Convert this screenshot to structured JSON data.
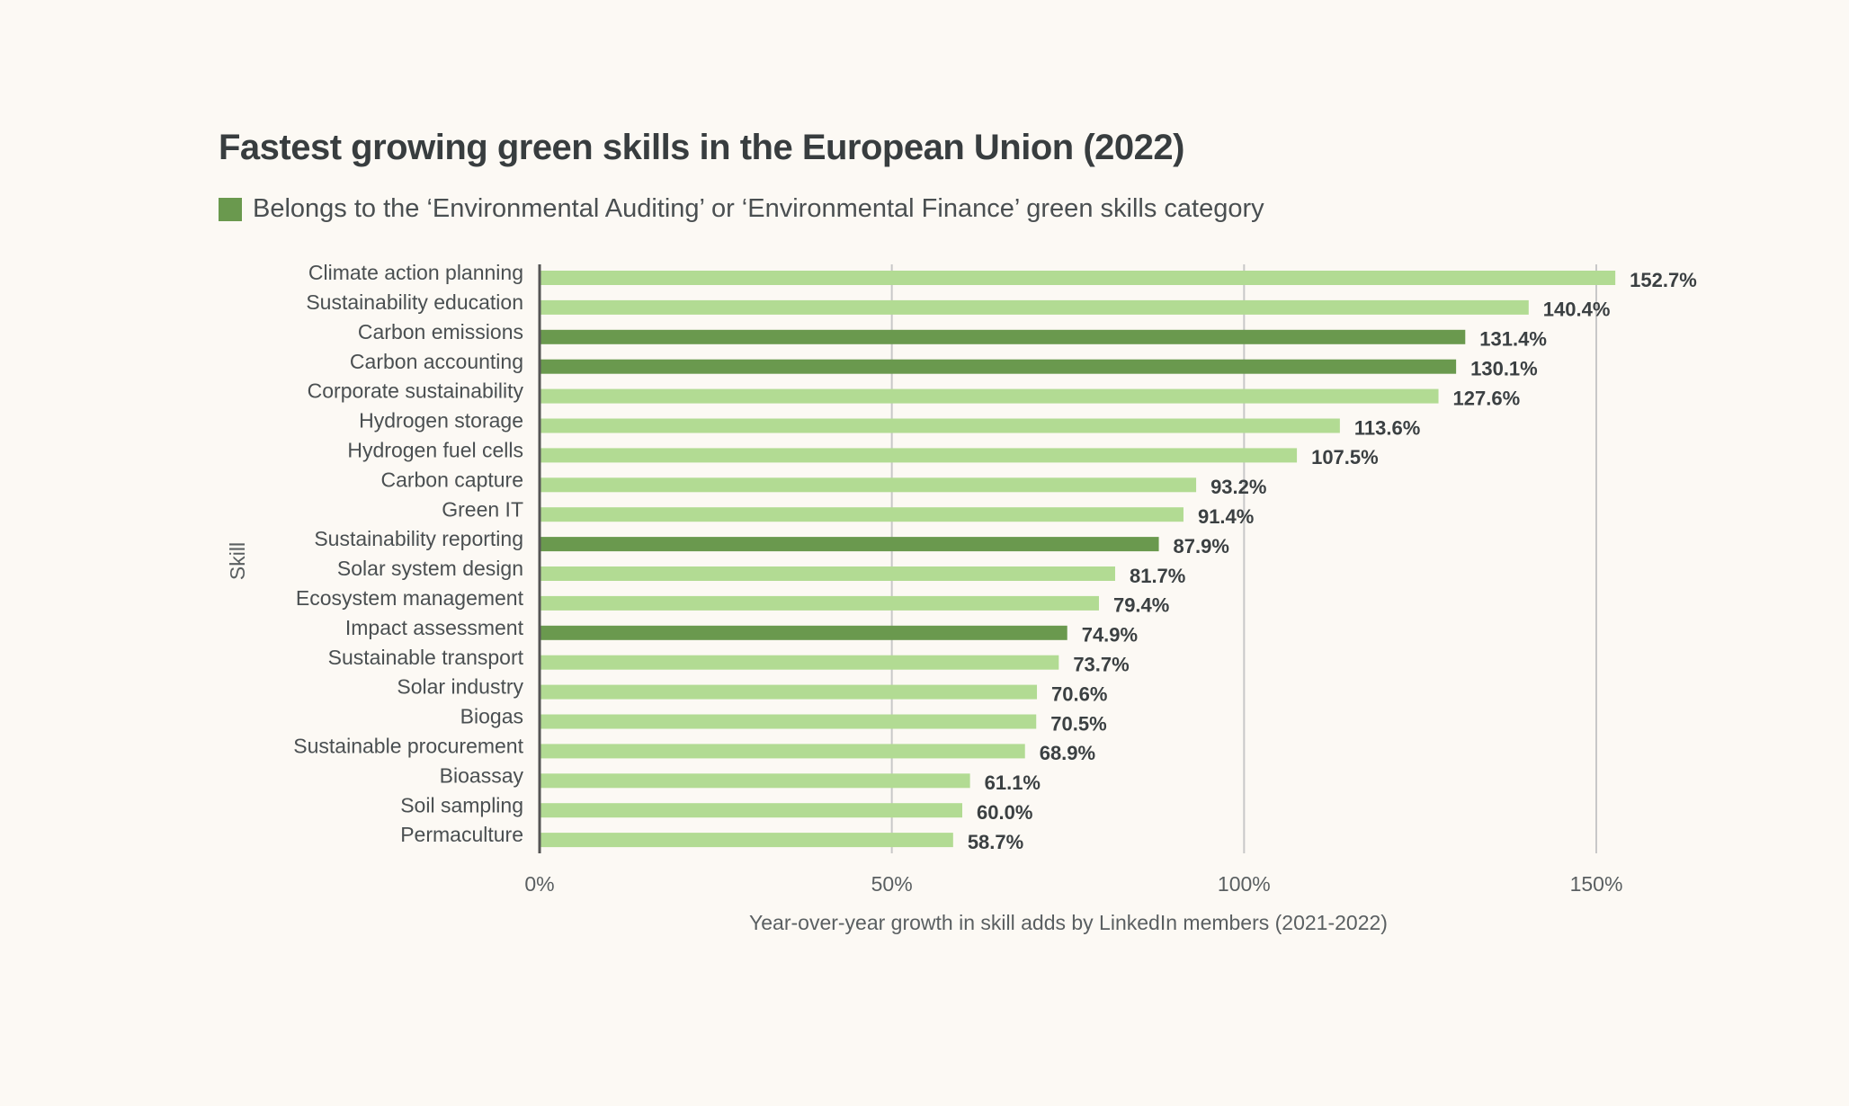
{
  "chart_data": {
    "type": "bar",
    "orientation": "horizontal",
    "title": "Fastest growing green skills in the European Union (2022)",
    "legend": {
      "label": "Belongs to the ‘Environmental Auditing’ or ‘Environmental Finance’ green skills category",
      "color": "#6a994e",
      "placement": "top-left"
    },
    "xlabel": "Year-over-year growth in skill adds by LinkedIn members (2021-2022)",
    "ylabel": "Skill",
    "xlim": [
      0,
      150
    ],
    "xticks": [
      0,
      50,
      100,
      150
    ],
    "xtick_labels": [
      "0%",
      "50%",
      "100%",
      "150%"
    ],
    "grid": "vertical",
    "colors": {
      "default": "#b2db93",
      "highlight": "#6a994e"
    },
    "categories": [
      "Climate action planning",
      "Sustainability education",
      "Carbon emissions",
      "Carbon accounting",
      "Corporate sustainability",
      "Hydrogen storage",
      "Hydrogen fuel cells",
      "Carbon capture",
      "Green IT",
      "Sustainability reporting",
      "Solar system design",
      "Ecosystem management",
      "Impact assessment",
      "Sustainable transport",
      "Solar industry",
      "Biogas",
      "Sustainable procurement",
      "Bioassay",
      "Soil sampling",
      "Permaculture"
    ],
    "values": [
      152.7,
      140.4,
      131.4,
      130.1,
      127.6,
      113.6,
      107.5,
      93.2,
      91.4,
      87.9,
      81.7,
      79.4,
      74.9,
      73.7,
      70.6,
      70.5,
      68.9,
      61.1,
      60.0,
      58.7
    ],
    "value_labels": [
      "152.7%",
      "140.4%",
      "131.4%",
      "130.1%",
      "127.6%",
      "113.6%",
      "107.5%",
      "93.2%",
      "91.4%",
      "87.9%",
      "81.7%",
      "79.4%",
      "74.9%",
      "73.7%",
      "70.6%",
      "70.5%",
      "68.9%",
      "61.1%",
      "60.0%",
      "58.7%"
    ],
    "highlighted": [
      false,
      false,
      true,
      true,
      false,
      false,
      false,
      false,
      false,
      true,
      false,
      false,
      true,
      false,
      false,
      false,
      false,
      false,
      false,
      false
    ]
  }
}
